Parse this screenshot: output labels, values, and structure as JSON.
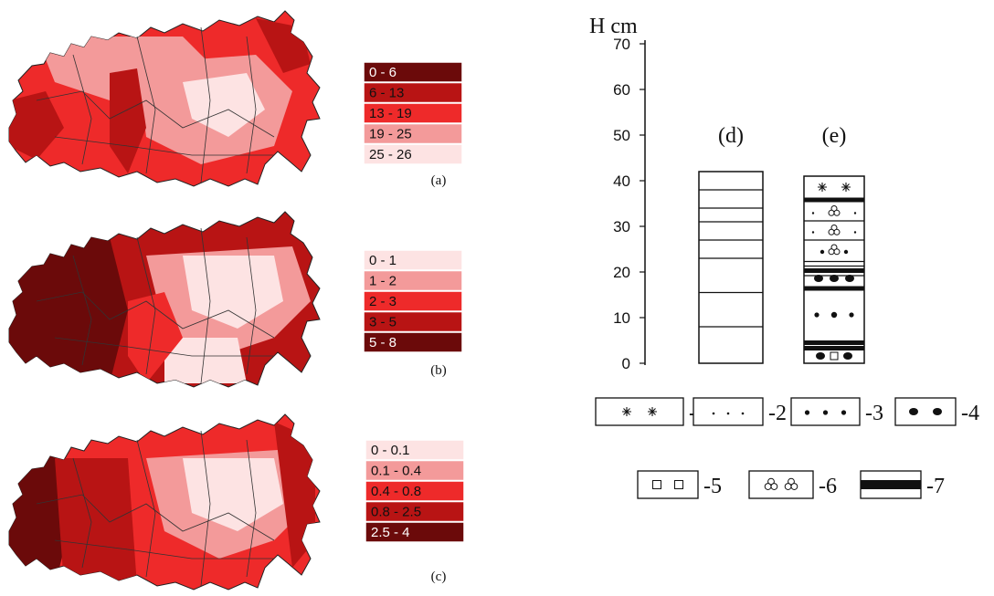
{
  "panels": [
    {
      "id": "a",
      "label": "(a)",
      "legend": [
        {
          "range": "0 - 6",
          "color": "#6b0a0a"
        },
        {
          "range": "6 - 13",
          "color": "#b81414"
        },
        {
          "range": "13 - 19",
          "color": "#ee2a2a"
        },
        {
          "range": "19 - 25",
          "color": "#f39a9a"
        },
        {
          "range": "25 - 26",
          "color": "#fde3e3"
        }
      ]
    },
    {
      "id": "b",
      "label": "(b)",
      "legend": [
        {
          "range": "0 - 1",
          "color": "#fde3e3"
        },
        {
          "range": "1 - 2",
          "color": "#f39a9a"
        },
        {
          "range": "2 - 3",
          "color": "#ee2a2a"
        },
        {
          "range": "3 - 5",
          "color": "#b81414"
        },
        {
          "range": "5 - 8",
          "color": "#6b0a0a"
        }
      ]
    },
    {
      "id": "c",
      "label": "(c)",
      "legend": [
        {
          "range": "0 - 0.1",
          "color": "#fde3e3"
        },
        {
          "range": "0.1 - 0.4",
          "color": "#f39a9a"
        },
        {
          "range": "0.4 - 0.8",
          "color": "#ee2a2a"
        },
        {
          "range": "0.8 - 2.5",
          "color": "#b81414"
        },
        {
          "range": "2.5 - 4",
          "color": "#6b0a0a"
        }
      ]
    }
  ],
  "profile": {
    "axis_title": "H cm",
    "ticks": [
      "70",
      "60",
      "50",
      "40",
      "30",
      "20",
      "10",
      "0"
    ],
    "columns": [
      {
        "id": "d",
        "label": "(d)",
        "top_cm": 42,
        "thin_boundaries_cm": [
          38,
          34,
          31,
          27,
          23,
          15.5,
          8
        ]
      },
      {
        "id": "e",
        "label": "(e)",
        "top_cm": 41,
        "layers": [
          {
            "from": 36,
            "to": 41,
            "symbol": "1"
          },
          {
            "from": 31,
            "to": 35.5,
            "symbol": "6"
          },
          {
            "from": 27,
            "to": 31,
            "symbol": "6"
          },
          {
            "from": 22,
            "to": 27,
            "symbol": "6"
          },
          {
            "from": 17,
            "to": 21,
            "symbol": "4"
          },
          {
            "from": 5,
            "to": 16,
            "symbol": "3"
          },
          {
            "from": 0,
            "to": 3,
            "symbol": "5"
          }
        ],
        "thick_boundaries_cm": [
          35.8,
          20.3,
          16.4,
          4.5,
          3.3
        ],
        "thin_boundaries_cm": [
          31.2,
          27,
          22.3,
          21.3,
          19.2
        ]
      }
    ],
    "legend": [
      {
        "symbol": "stars",
        "label": "-1"
      },
      {
        "symbol": "small-dots",
        "label": "-2"
      },
      {
        "symbol": "dots",
        "label": "-3"
      },
      {
        "symbol": "large-dots",
        "label": "-4"
      },
      {
        "symbol": "squares",
        "label": "-5"
      },
      {
        "symbol": "trefoils",
        "label": "-6"
      },
      {
        "symbol": "thick-band",
        "label": "-7"
      }
    ]
  }
}
